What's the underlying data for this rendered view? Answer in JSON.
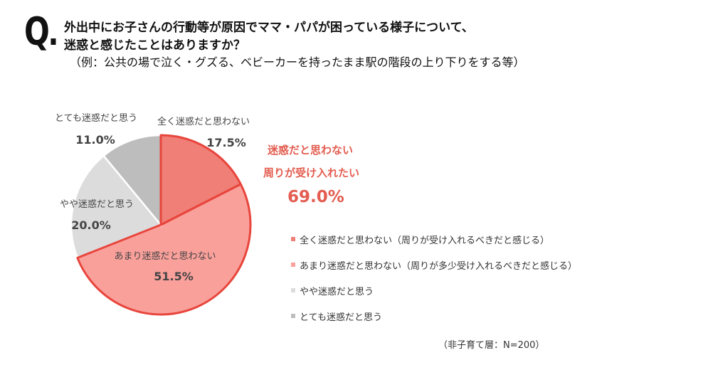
{
  "question_mark": "Q",
  "title": {
    "line1": "外出中にお子さんの行動等が原因でママ・パパが困っている様子について、",
    "line2": "迷惑と感じたことはありますか？",
    "example": "（例：公共の場で泣く・グズる、ベビーカーを持ったまま駅の階段の上り下りをする等）"
  },
  "callout": {
    "line1": "迷惑だと思わない",
    "line2": "周りが受け入れたい",
    "value": "69.0%"
  },
  "footnote": "（非子育て層：N=200）",
  "colors": {
    "accent": "#e8453c",
    "callout_text": "#e35c4f"
  },
  "chart_data": {
    "type": "pie",
    "start_angle_deg": 0,
    "direction": "clockwise",
    "slices": [
      {
        "label": "全く迷惑だと思わない",
        "value": 17.5,
        "value_label": "17.5%",
        "color": "#f07f77",
        "highlight": true
      },
      {
        "label": "あまり迷惑だと思わない",
        "value": 51.5,
        "value_label": "51.5%",
        "color": "#f9a09b",
        "highlight": true
      },
      {
        "label": "やや迷惑だと思う",
        "value": 20.0,
        "value_label": "20.0%",
        "color": "#dcdcdc",
        "highlight": false
      },
      {
        "label": "とても迷惑だと思う",
        "value": 11.0,
        "value_label": "11.0%",
        "color": "#bdbdbd",
        "highlight": false
      }
    ],
    "legend": {
      "placement": "bottom-right",
      "items": [
        {
          "label": "全く迷惑だと思わない（周りが受け入れるべきだと感じる）",
          "color": "#f07f77"
        },
        {
          "label": "あまり迷惑だと思わない（周りが多少受け入れるべきだと感じる）",
          "color": "#f9a09b"
        },
        {
          "label": "やや迷惑だと思う",
          "color": "#dcdcdc"
        },
        {
          "label": "とても迷惑だと思う",
          "color": "#bdbdbd"
        }
      ]
    }
  }
}
